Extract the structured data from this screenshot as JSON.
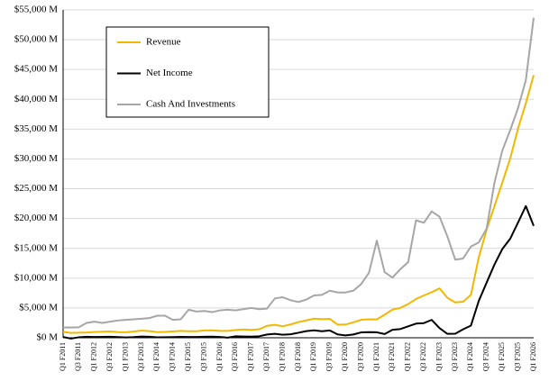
{
  "chart_data": {
    "type": "line",
    "categories": [
      "Q1 F2011",
      null,
      "Q3 F2011",
      null,
      "Q1 F2012",
      null,
      "Q3 F2012",
      null,
      "Q1 F2013",
      null,
      "Q3 F2013",
      null,
      "Q1 F2014",
      null,
      "Q3 F2014",
      null,
      "Q1 F2015",
      null,
      "Q3 F2015",
      null,
      "Q1 F2016",
      null,
      "Q3 F2016",
      null,
      "Q1 F2017",
      null,
      "Q3 F2017",
      null,
      "Q1 F2018",
      null,
      "Q3 F2018",
      null,
      "Q1 F2019",
      null,
      "Q3 F2019",
      null,
      "Q1 F2020",
      null,
      "Q3 F2020",
      null,
      "Q1 F2021",
      null,
      "Q3 F2021",
      null,
      "Q1 F2022",
      null,
      "Q3 F2022",
      null,
      "Q1 F2023",
      null,
      "Q3 F2023",
      null,
      "Q1 F2024",
      null,
      "Q3 F2024",
      null,
      "Q1 F2025",
      null,
      "Q3 F2025",
      null,
      "Q1 F2026"
    ],
    "series": [
      {
        "name": "Revenue",
        "color": "#f2b800",
        "values": [
          1002,
          811,
          844,
          886,
          962,
          1017,
          1066,
          954,
          924,
          1044,
          1204,
          1107,
          954,
          977,
          1054,
          1144,
          1103,
          1103,
          1225,
          1251,
          1151,
          1153,
          1305,
          1401,
          1305,
          1428,
          2004,
          2173,
          1937,
          2230,
          2636,
          2911,
          3207,
          3123,
          3181,
          2205,
          2220,
          2579,
          3014,
          3105,
          3080,
          3866,
          4726,
          5003,
          5661,
          6507,
          7103,
          7643,
          8288,
          6704,
          5931,
          6051,
          7192,
          13507,
          18120,
          22103,
          26044,
          30040,
          35082,
          39331,
          44062
        ]
      },
      {
        "name": "Net Income",
        "color": "#000000",
        "values": [
          137,
          -141,
          84,
          172,
          135,
          151,
          178,
          116,
          60,
          119,
          209,
          174,
          78,
          96,
          118,
          147,
          137,
          128,
          173,
          193,
          134,
          26,
          246,
          207,
          196,
          253,
          542,
          655,
          507,
          583,
          838,
          1118,
          1244,
          1101,
          1230,
          567,
          394,
          552,
          899,
          950,
          917,
          622,
          1336,
          1457,
          1912,
          2374,
          2464,
          3003,
          1618,
          656,
          680,
          1414,
          2043,
          6188,
          9243,
          12285,
          14881,
          16599,
          19309,
          22091,
          18775
        ]
      },
      {
        "name": "Cash And Investments",
        "color": "#a6a6a6",
        "values": [
          1730,
          1720,
          1750,
          2490,
          2700,
          2500,
          2700,
          2900,
          3000,
          3100,
          3200,
          3300,
          3700,
          3700,
          3000,
          3100,
          4700,
          4400,
          4500,
          4300,
          4600,
          4700,
          4600,
          4800,
          5000,
          4800,
          4900,
          6600,
          6800,
          6300,
          6000,
          6400,
          7100,
          7200,
          7900,
          7600,
          7600,
          7900,
          9000,
          10900,
          16300,
          11000,
          10100,
          11500,
          12700,
          19700,
          19300,
          21200,
          20300,
          17000,
          13100,
          13300,
          15300,
          16000,
          18300,
          26000,
          31400,
          34800,
          38500,
          43200,
          53700
        ]
      }
    ],
    "ylim": [
      0,
      55000
    ],
    "yticks": [
      {
        "value": 0,
        "label": "$0 M"
      },
      {
        "value": 5000,
        "label": "$5,000 M"
      },
      {
        "value": 10000,
        "label": "$10,000 M"
      },
      {
        "value": 15000,
        "label": "$15,000 M"
      },
      {
        "value": 20000,
        "label": "$20,000 M"
      },
      {
        "value": 25000,
        "label": "$25,000 M"
      },
      {
        "value": 30000,
        "label": "$30,000 M"
      },
      {
        "value": 35000,
        "label": "$35,000 M"
      },
      {
        "value": 40000,
        "label": "$40,000 M"
      },
      {
        "value": 45000,
        "label": "$45,000 M"
      },
      {
        "value": 50000,
        "label": "$50,000 M"
      },
      {
        "value": 55000,
        "label": "$55,000 M"
      }
    ],
    "grid": true
  }
}
